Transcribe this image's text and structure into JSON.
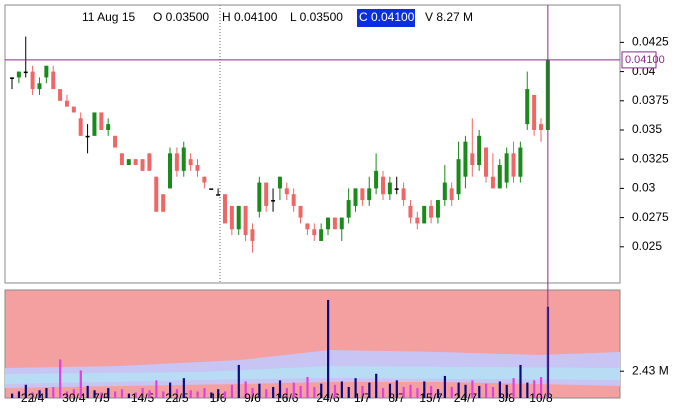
{
  "chart_data": {
    "type": "candlestick",
    "header": [
      "11 Aug 15",
      "O 0.03500",
      "H 0.04100",
      "L 0.03500",
      "C 0.04100",
      "V 8.27 M"
    ],
    "categories": [
      null,
      null,
      null,
      "22/4",
      null,
      null,
      null,
      null,
      null,
      "30/4",
      null,
      null,
      null,
      "7/5",
      null,
      null,
      null,
      null,
      null,
      "14/5",
      null,
      null,
      null,
      null,
      "22/5",
      null,
      null,
      null,
      null,
      null,
      "1/6",
      null,
      null,
      null,
      null,
      "9/6",
      null,
      null,
      null,
      null,
      "16/6",
      null,
      null,
      null,
      null,
      null,
      "24/6",
      null,
      null,
      null,
      null,
      "1/7",
      null,
      null,
      null,
      null,
      "8/7",
      null,
      null,
      null,
      null,
      "15/7",
      null,
      null,
      null,
      null,
      "24/7",
      null,
      null,
      null,
      null,
      null,
      "3/8",
      null,
      null,
      null,
      null,
      "10/8",
      null
    ],
    "open": [
      0.0395,
      0.0395,
      0.04,
      0.04,
      0.0385,
      0.0395,
      0.04,
      0.0385,
      0.0375,
      0.037,
      0.036,
      0.0345,
      0.0345,
      0.0365,
      0.035,
      0.0345,
      0.033,
      0.032,
      0.0325,
      0.0325,
      0.033,
      0.031,
      0.0295,
      0.03,
      0.033,
      0.0315,
      0.0325,
      0.032,
      0.031,
      0.03,
      0.0295,
      0.0295,
      0.0285,
      0.0265,
      0.0285,
      0.0265,
      0.028,
      0.0305,
      0.029,
      0.03,
      0.03,
      0.0295,
      0.0285,
      0.027,
      0.0265,
      0.0255,
      0.0265,
      0.0275,
      0.0265,
      0.0275,
      0.0285,
      0.03,
      0.029,
      0.03,
      0.031,
      0.0295,
      0.03,
      0.03,
      0.0285,
      0.0275,
      0.027,
      0.0285,
      0.0275,
      0.029,
      0.03,
      0.0295,
      0.031,
      0.033,
      0.032,
      0.0335,
      0.031,
      0.03,
      0.0305,
      0.033,
      0.031,
      0.0355,
      0.038,
      0.0355,
      0.035
    ],
    "high": [
      0.0395,
      0.04,
      0.043,
      0.0405,
      0.0395,
      0.0405,
      0.0405,
      0.0385,
      0.038,
      0.037,
      0.0365,
      0.0355,
      0.0365,
      0.0365,
      0.036,
      0.0345,
      0.033,
      0.0325,
      0.0325,
      0.0325,
      0.033,
      0.031,
      0.0295,
      0.0335,
      0.0335,
      0.034,
      0.033,
      0.0325,
      0.031,
      0.03,
      0.03,
      0.0295,
      0.0285,
      0.0285,
      0.0285,
      0.027,
      0.031,
      0.0305,
      0.03,
      0.031,
      0.0305,
      0.03,
      0.0285,
      0.027,
      0.027,
      0.027,
      0.0275,
      0.0275,
      0.0275,
      0.03,
      0.03,
      0.03,
      0.031,
      0.033,
      0.0315,
      0.031,
      0.031,
      0.0305,
      0.029,
      0.028,
      0.0285,
      0.029,
      0.029,
      0.032,
      0.0305,
      0.034,
      0.0345,
      0.036,
      0.035,
      0.0335,
      0.033,
      0.0325,
      0.0335,
      0.034,
      0.034,
      0.04,
      0.038,
      0.036,
      0.041
    ],
    "low": [
      0.0385,
      0.039,
      0.0395,
      0.038,
      0.038,
      0.039,
      0.0385,
      0.0375,
      0.037,
      0.0365,
      0.0345,
      0.033,
      0.0345,
      0.035,
      0.0345,
      0.0335,
      0.032,
      0.032,
      0.032,
      0.0315,
      0.0315,
      0.028,
      0.028,
      0.03,
      0.031,
      0.031,
      0.0315,
      0.031,
      0.03,
      0.03,
      0.0295,
      0.027,
      0.026,
      0.026,
      0.0255,
      0.0245,
      0.0275,
      0.028,
      0.028,
      0.029,
      0.029,
      0.028,
      0.027,
      0.026,
      0.0255,
      0.0255,
      0.026,
      0.0265,
      0.0255,
      0.027,
      0.028,
      0.0285,
      0.0285,
      0.0295,
      0.029,
      0.029,
      0.0295,
      0.0285,
      0.027,
      0.0265,
      0.027,
      0.027,
      0.027,
      0.0285,
      0.0285,
      0.029,
      0.03,
      0.031,
      0.0315,
      0.0305,
      0.03,
      0.03,
      0.03,
      0.0305,
      0.0305,
      0.035,
      0.0345,
      0.034,
      0.035
    ],
    "close": [
      0.0395,
      0.04,
      0.04,
      0.0385,
      0.039,
      0.0405,
      0.0385,
      0.0375,
      0.037,
      0.0365,
      0.0345,
      0.0345,
      0.0365,
      0.035,
      0.0355,
      0.0335,
      0.032,
      0.0325,
      0.032,
      0.0315,
      0.0315,
      0.028,
      0.028,
      0.033,
      0.0315,
      0.0335,
      0.032,
      0.0315,
      0.0305,
      0.03,
      0.0295,
      0.027,
      0.0265,
      0.0285,
      0.026,
      0.0255,
      0.0305,
      0.0285,
      0.029,
      0.031,
      0.0295,
      0.0285,
      0.0275,
      0.0265,
      0.026,
      0.0265,
      0.0275,
      0.0265,
      0.0275,
      0.029,
      0.03,
      0.029,
      0.03,
      0.0315,
      0.0295,
      0.0305,
      0.03,
      0.029,
      0.0275,
      0.027,
      0.0285,
      0.0275,
      0.029,
      0.0305,
      0.029,
      0.0325,
      0.034,
      0.032,
      0.0345,
      0.031,
      0.03,
      0.032,
      0.033,
      0.031,
      0.0335,
      0.0385,
      0.035,
      0.035,
      0.041
    ],
    "volume": [
      0.4,
      0.6,
      1.2,
      0.5,
      0.7,
      0.9,
      1.0,
      3.5,
      0.6,
      0.8,
      2.5,
      1.1,
      0.7,
      0.5,
      0.9,
      0.6,
      0.8,
      0.4,
      0.5,
      0.9,
      0.7,
      1.6,
      0.6,
      1.4,
      0.8,
      1.8,
      0.7,
      0.6,
      0.9,
      0.5,
      0.8,
      0.6,
      1.2,
      3.0,
      1.5,
      0.9,
      1.3,
      0.8,
      1.0,
      1.6,
      0.9,
      1.4,
      1.1,
      1.9,
      1.0,
      1.3,
      8.9,
      1.2,
      1.5,
      1.0,
      1.8,
      1.1,
      1.4,
      2.2,
      0.9,
      1.3,
      1.6,
      1.0,
      1.2,
      0.9,
      1.5,
      1.1,
      0.8,
      2.0,
      1.0,
      1.4,
      1.2,
      1.6,
      1.1,
      1.3,
      1.0,
      1.5,
      1.2,
      1.8,
      3.0,
      1.4,
      1.6,
      1.9,
      8.27
    ],
    "colors": {
      "up": "#1a8a1a",
      "down": "#ee6666",
      "flat": "#000000",
      "vol_up": "#0a0a80",
      "vol_down": "#e040e0"
    },
    "ylim": [
      0.0219,
      0.0457
    ],
    "yticks": [
      0.0425,
      {
        "value": 0.04,
        "label": "0.04"
      },
      0.0375,
      0.035,
      0.0325,
      {
        "value": 0.03,
        "label": "0.03"
      },
      0.0275,
      0.025
    ],
    "vol_ylim": [
      0,
      9.8
    ],
    "vol_yticks": [
      {
        "value": 2.43,
        "label": "2.43 M"
      }
    ],
    "crosshair": {
      "value": 0.041,
      "label": "0.04100"
    }
  }
}
